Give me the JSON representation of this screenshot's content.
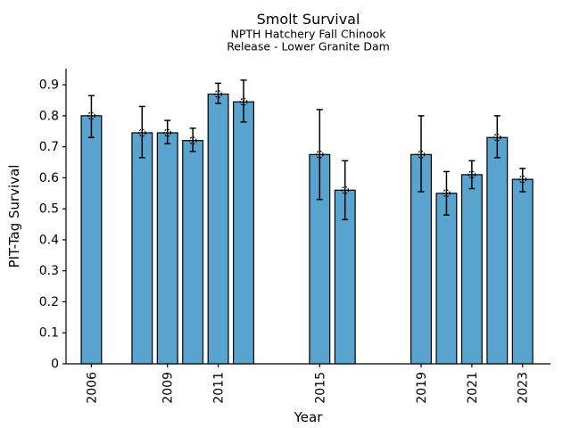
{
  "chart_data": {
    "type": "bar",
    "title": "Smolt Survival",
    "subtitle_line1": "NPTH Hatchery Fall Chinook",
    "subtitle_line2": "Release - Lower Granite Dam",
    "xlabel": "Year",
    "ylabel": "PIT-Tag Survival",
    "series": [
      {
        "name": "PIT-Tag Survival",
        "categories": [
          2006,
          2008,
          2009,
          2010,
          2011,
          2012,
          2015,
          2016,
          2019,
          2020,
          2021,
          2022,
          2023
        ],
        "values": [
          0.8,
          0.745,
          0.745,
          0.72,
          0.87,
          0.845,
          0.675,
          0.56,
          0.675,
          0.55,
          0.61,
          0.73,
          0.595
        ],
        "error_low": [
          0.73,
          0.665,
          0.71,
          0.685,
          0.84,
          0.78,
          0.53,
          0.465,
          0.555,
          0.48,
          0.565,
          0.665,
          0.555
        ],
        "error_high": [
          0.865,
          0.83,
          0.785,
          0.76,
          0.905,
          0.915,
          0.82,
          0.655,
          0.8,
          0.62,
          0.655,
          0.8,
          0.63
        ]
      }
    ],
    "xticks": [
      2006,
      2009,
      2011,
      2015,
      2019,
      2021,
      2023
    ],
    "yticks": [
      0,
      0.1,
      0.2,
      0.3,
      0.4,
      0.5,
      0.6,
      0.7,
      0.8,
      0.9
    ],
    "ytick_labels": [
      "0",
      "0.1",
      "0.2",
      "0.3",
      "0.4",
      "0.5",
      "0.6",
      "0.7",
      "0.8",
      "0.9"
    ],
    "xlim": [
      2005,
      2024.1
    ],
    "ylim": [
      0,
      0.952
    ],
    "grid": false,
    "legend_position": "none",
    "bar_width_years": 0.8,
    "marker": "open-circle-dashed",
    "colors": {
      "bar_fill": "#58a4cf",
      "bar_edge": "#000000",
      "error_bar": "#000000",
      "axis": "#000000",
      "background": "#ffffff"
    }
  }
}
